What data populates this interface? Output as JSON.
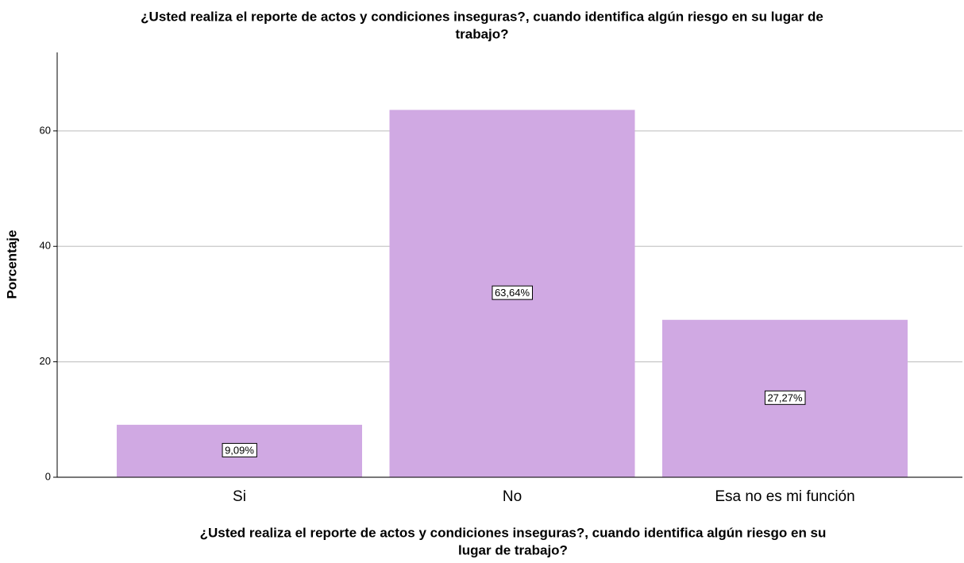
{
  "chart_data": {
    "type": "bar",
    "title": [
      "¿Usted realiza el reporte de actos y condiciones inseguras?, cuando identifica algún riesgo en su lugar de",
      "trabajo?"
    ],
    "x_label": [
      "¿Usted realiza el reporte de actos y condiciones inseguras?, cuando identifica algún riesgo en su",
      "lugar de trabajo?"
    ],
    "y_label": "Porcentaje",
    "categories": [
      "Si",
      "No",
      "Esa no es mi función"
    ],
    "values": [
      9.09,
      63.64,
      27.27
    ],
    "value_labels": [
      "9,09%",
      "63,64%",
      "27,27%"
    ],
    "color": "#d0a9e3",
    "ylim": [
      0,
      73.6
    ],
    "yticks": [
      0,
      20,
      40,
      60
    ],
    "grid": true
  }
}
